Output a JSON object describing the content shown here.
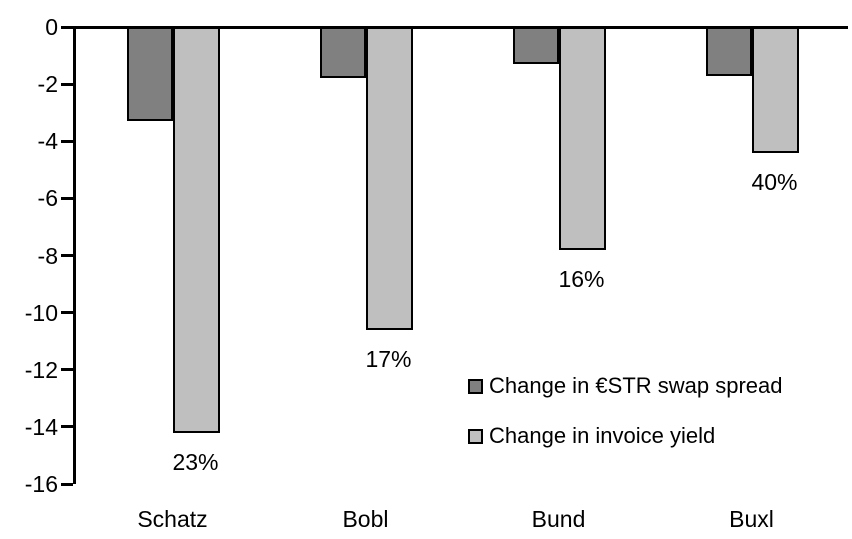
{
  "chart_data": {
    "type": "bar",
    "title": "",
    "orientation": "vertical-negative",
    "categories": [
      "Schatz",
      "Bobl",
      "Bund",
      "Buxl"
    ],
    "series": [
      {
        "name": "Change in €STR swap spread",
        "slug": "estr-swap-spread",
        "color": "#808080",
        "values": [
          -3.3,
          -1.8,
          -1.3,
          -1.7
        ]
      },
      {
        "name": "Change in invoice yield",
        "slug": "invoice-yield",
        "color": "#BFBFBF",
        "values": [
          -14.2,
          -10.6,
          -7.8,
          -4.4
        ],
        "bar_labels": [
          "23%",
          "17%",
          "16%",
          "40%"
        ]
      }
    ],
    "xlabel": "",
    "ylabel": "",
    "ylim": [
      -16,
      0
    ],
    "yticks": [
      "0",
      "-2",
      "-4",
      "-6",
      "-8",
      "-10",
      "-12",
      "-14",
      "-16"
    ],
    "grid": false,
    "legend": {
      "position": "inside-right",
      "entries": [
        "Change in €STR swap spread",
        "Change in invoice yield"
      ]
    },
    "colors": {
      "axis": "#000000",
      "bar_border": "#000000",
      "background": "#FFFFFF",
      "text": "#000000"
    }
  }
}
